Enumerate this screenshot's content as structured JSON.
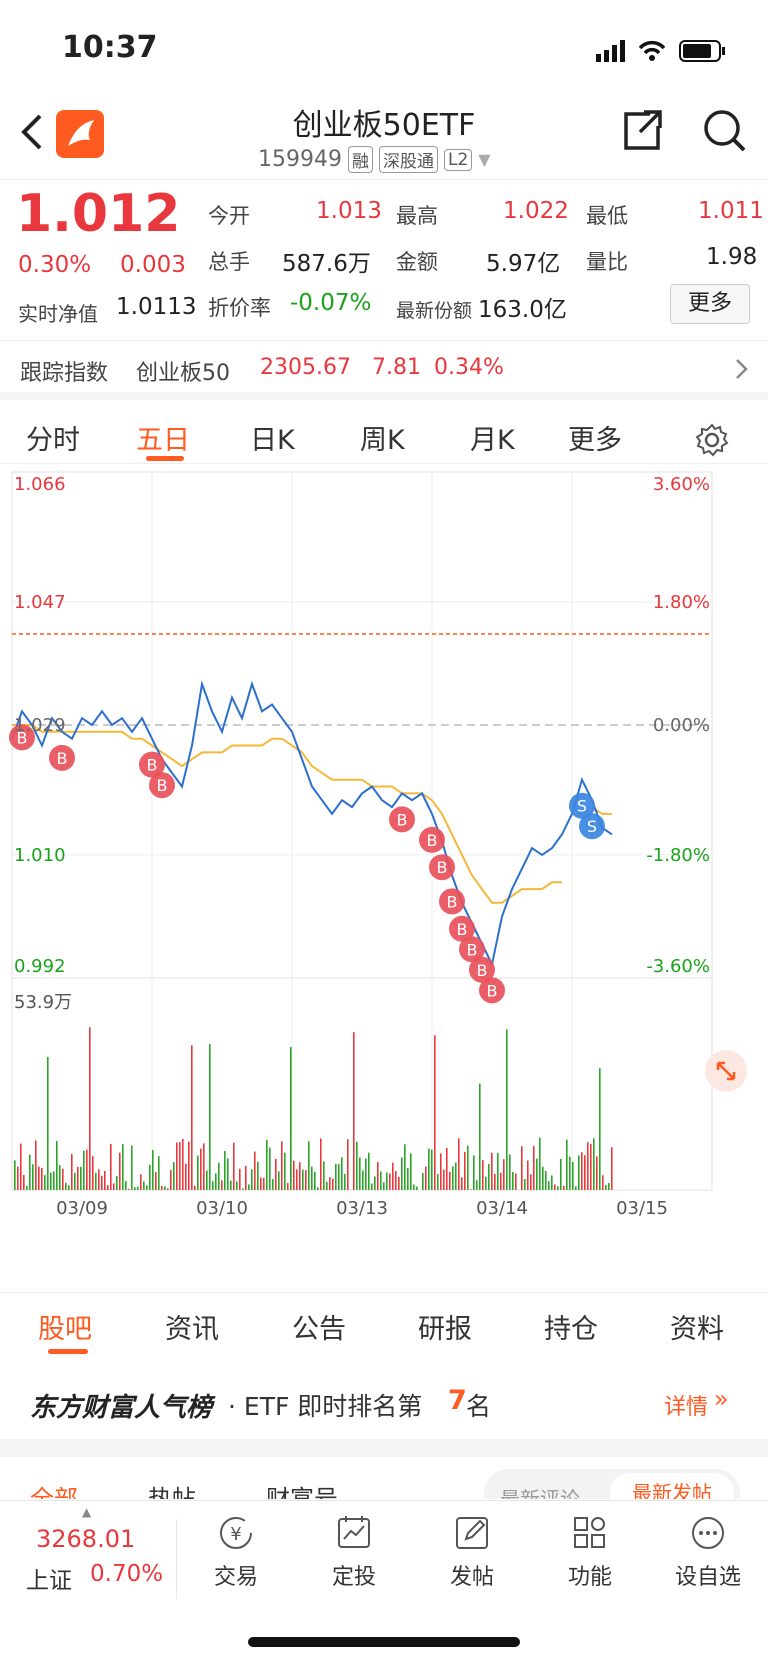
{
  "status": {
    "time": "10:37"
  },
  "nav": {
    "title": "创业板50ETF",
    "code": "159949",
    "tags": [
      "融",
      "深股通",
      "L2"
    ]
  },
  "quote": {
    "price": "1.012",
    "pct": "0.30%",
    "change": "0.003",
    "open_label": "今开",
    "open": "1.013",
    "high_label": "最高",
    "high": "1.022",
    "low_label": "最低",
    "low": "1.011",
    "volume_label": "总手",
    "volume": "587.6万",
    "amount_label": "金额",
    "amount": "5.97亿",
    "vol_ratio_label": "量比",
    "vol_ratio": "1.98",
    "nav_label": "实时净值",
    "nav_value": "1.0113",
    "discount_label": "折价率",
    "discount": "-0.07%",
    "shares_label": "最新份额",
    "shares": "163.0亿",
    "more_button": "更多"
  },
  "tracking": {
    "label": "跟踪指数",
    "index_name": "创业板50",
    "index_value": "2305.67",
    "index_change": "7.81",
    "index_pct": "0.34%"
  },
  "chart_tabs": [
    "分时",
    "五日",
    "日K",
    "周K",
    "月K",
    "更多"
  ],
  "active_chart_tab": "五日",
  "chart_data": {
    "type": "line",
    "y_ticks_left": [
      "1.066",
      "1.047",
      "1.029",
      "1.010",
      "0.992"
    ],
    "y_ticks_right": [
      "3.60%",
      "1.80%",
      "0.00%",
      "-1.80%",
      "-3.60%"
    ],
    "x_labels": [
      "03/09",
      "03/10",
      "03/13",
      "03/14",
      "03/15"
    ],
    "ylim": [
      0.992,
      1.066
    ],
    "prev_close": 1.029,
    "volume_max_label": "53.9万",
    "markers_buy": "B",
    "markers_sell": "S",
    "series": [
      {
        "name": "price",
        "color": "#2b6fd1",
        "values": [
          1.027,
          1.031,
          1.029,
          1.026,
          1.03,
          1.028,
          1.027,
          1.03,
          1.029,
          1.031,
          1.029,
          1.03,
          1.028,
          1.03,
          1.027,
          1.024,
          1.022,
          1.02,
          1.026,
          1.035,
          1.031,
          1.028,
          1.033,
          1.03,
          1.035,
          1.031,
          1.032,
          1.03,
          1.028,
          1.024,
          1.02,
          1.018,
          1.016,
          1.018,
          1.017,
          1.019,
          1.02,
          1.018,
          1.017,
          1.019,
          1.018,
          1.019,
          1.016,
          1.012,
          1.007,
          1.003,
          1.0,
          0.997,
          0.994,
          1.001,
          1.005,
          1.008,
          1.011,
          1.01,
          1.011,
          1.013,
          1.016,
          1.021,
          1.018,
          1.014,
          1.013
        ]
      },
      {
        "name": "avg",
        "color": "#f4b73a",
        "values": [
          1.029,
          1.029,
          1.029,
          1.028,
          1.028,
          1.028,
          1.028,
          1.028,
          1.028,
          1.028,
          1.028,
          1.028,
          1.027,
          1.027,
          1.026,
          1.025,
          1.024,
          1.023,
          1.024,
          1.025,
          1.025,
          1.025,
          1.026,
          1.026,
          1.026,
          1.026,
          1.027,
          1.027,
          1.026,
          1.025,
          1.023,
          1.022,
          1.021,
          1.021,
          1.021,
          1.021,
          1.02,
          1.02,
          1.02,
          1.019,
          1.019,
          1.019,
          1.018,
          1.016,
          1.013,
          1.01,
          1.007,
          1.005,
          1.003,
          1.003,
          1.004,
          1.005,
          1.005,
          1.005,
          1.006,
          1.006,
          null,
          null,
          1.017,
          1.016,
          1.016
        ]
      }
    ]
  },
  "info_tabs": [
    "股吧",
    "资讯",
    "公告",
    "研报",
    "持仓",
    "资料"
  ],
  "active_info_tab": "股吧",
  "rank": {
    "brand": "东方财富人气榜",
    "text": "· ETF 即时排名第",
    "number": "7",
    "suffix": "名",
    "detail": "详情"
  },
  "sub_tabs": [
    "全部",
    "热帖",
    "财富号"
  ],
  "sort_tabs": [
    "最新评论",
    "最新发帖"
  ],
  "dock": {
    "index_value": "3268.01",
    "index_name": "上证",
    "index_pct": "0.70%",
    "items": [
      "交易",
      "定投",
      "发帖",
      "功能",
      "设自选"
    ]
  }
}
